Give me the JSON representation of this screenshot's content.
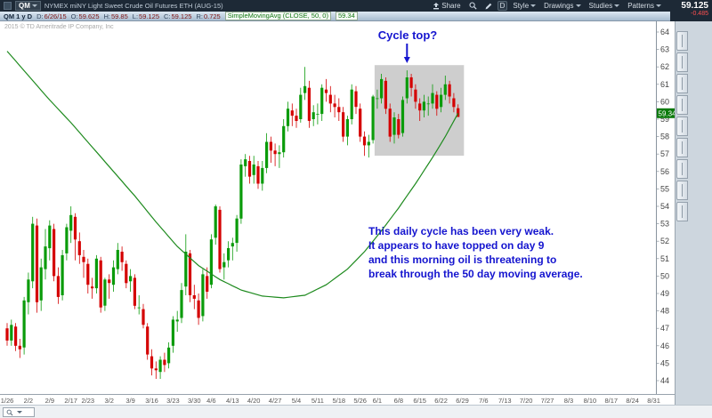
{
  "titlebar": {
    "symbol": "QM",
    "title": "NYMEX miNY Light Sweet Crude Oil Futures ETH (AUG-15)",
    "share_label": "Share",
    "timeframe_label": "D",
    "style_label": "Style",
    "drawings_label": "Drawings",
    "studies_label": "Studies",
    "patterns_label": "Patterns",
    "last_price": "59.125",
    "change": "-0.485"
  },
  "statusbar": {
    "symbol_period": "QM 1 y D",
    "fields": [
      {
        "label": "D:",
        "value": "6/26/15"
      },
      {
        "label": "O:",
        "value": "59.625"
      },
      {
        "label": "H:",
        "value": "59.85"
      },
      {
        "label": "L:",
        "value": "59.125"
      },
      {
        "label": "C:",
        "value": "59.125"
      },
      {
        "label": "R:",
        "value": "0.725"
      }
    ],
    "study_legend": "SimpleMovingAvg (CLOSE, 50, 0)",
    "study_value": "59.34"
  },
  "chart": {
    "copyright": "2015 © TD Ameritrade IP Company, Inc",
    "colors": {
      "up": "#0a9b0a",
      "down": "#d40000",
      "ma": "#1e8a1e",
      "annotation": "#1515cf",
      "region": "#c9c9c9",
      "badge_bg": "#0c7a0c",
      "axis_text": "#444444"
    },
    "annotations": {
      "cycle_top": {
        "text": "Cycle top?",
        "arrow_date": "6/10",
        "arrow_index": 94
      },
      "note_lines": [
        "This daily cycle has been very weak.",
        "It appears to have topped on day 9",
        "and this morning oil is threatening to",
        "break through the 50 day moving average."
      ],
      "region": {
        "start_date": "6/1",
        "start_index": 87,
        "end_index": 108,
        "top_price": 62.1,
        "bottom_price": 56.9
      }
    },
    "y_axis": {
      "labels": [
        64,
        63,
        62,
        61,
        60,
        59,
        58,
        57,
        56,
        55,
        54,
        53,
        52,
        51,
        50,
        49,
        48,
        47,
        46,
        45,
        44
      ],
      "ma_badge": "59.34"
    }
  },
  "chart_data": {
    "type": "candlestick",
    "symbol": "QM",
    "ylim": [
      43.5,
      64.6
    ],
    "dates": [
      "1/26",
      "1/27",
      "1/28",
      "1/29",
      "1/30",
      "2/2",
      "2/3",
      "2/4",
      "2/5",
      "2/6",
      "2/9",
      "2/10",
      "2/11",
      "2/12",
      "2/13",
      "2/17",
      "2/18",
      "2/19",
      "2/20",
      "2/23",
      "2/24",
      "2/25",
      "2/26",
      "2/27",
      "3/2",
      "3/3",
      "3/4",
      "3/5",
      "3/6",
      "3/9",
      "3/10",
      "3/11",
      "3/12",
      "3/13",
      "3/16",
      "3/17",
      "3/18",
      "3/19",
      "3/20",
      "3/23",
      "3/24",
      "3/25",
      "3/26",
      "3/27",
      "3/30",
      "3/31",
      "4/1",
      "4/2",
      "4/6",
      "4/7",
      "4/8",
      "4/9",
      "4/10",
      "4/13",
      "4/14",
      "4/15",
      "4/16",
      "4/17",
      "4/20",
      "4/21",
      "4/22",
      "4/23",
      "4/24",
      "4/27",
      "4/28",
      "4/29",
      "4/30",
      "5/1",
      "5/4",
      "5/5",
      "5/6",
      "5/7",
      "5/8",
      "5/11",
      "5/12",
      "5/13",
      "5/14",
      "5/15",
      "5/18",
      "5/19",
      "5/20",
      "5/21",
      "5/22",
      "5/26",
      "5/27",
      "5/28",
      "5/29",
      "6/1",
      "6/2",
      "6/3",
      "6/4",
      "6/5",
      "6/8",
      "6/9",
      "6/10",
      "6/11",
      "6/12",
      "6/15",
      "6/16",
      "6/17",
      "6/18",
      "6/19",
      "6/22",
      "6/23",
      "6/24",
      "6/25",
      "6/26"
    ],
    "candles": [
      [
        47.0,
        47.3,
        46.0,
        46.3
      ],
      [
        46.3,
        47.5,
        46.0,
        47.2
      ],
      [
        47.1,
        47.3,
        45.7,
        46.0
      ],
      [
        46.0,
        46.4,
        45.3,
        45.8
      ],
      [
        45.9,
        48.8,
        45.5,
        48.6
      ],
      [
        48.5,
        50.2,
        47.8,
        49.8
      ],
      [
        49.7,
        53.4,
        49.3,
        53.0
      ],
      [
        52.9,
        53.3,
        47.9,
        48.5
      ],
      [
        48.6,
        51.0,
        48.0,
        50.5
      ],
      [
        50.4,
        52.7,
        49.8,
        51.7
      ],
      [
        51.6,
        53.2,
        50.9,
        52.9
      ],
      [
        52.7,
        53.0,
        49.7,
        50.0
      ],
      [
        50.0,
        50.5,
        48.4,
        48.8
      ],
      [
        48.9,
        51.5,
        48.6,
        51.2
      ],
      [
        51.3,
        53.0,
        50.9,
        52.8
      ],
      [
        52.6,
        54.0,
        51.9,
        53.5
      ],
      [
        53.4,
        53.6,
        50.9,
        52.1
      ],
      [
        52.0,
        52.5,
        50.7,
        51.2
      ],
      [
        51.1,
        51.5,
        49.9,
        50.8
      ],
      [
        50.7,
        51.0,
        49.0,
        49.5
      ],
      [
        49.4,
        49.9,
        48.7,
        49.3
      ],
      [
        49.3,
        51.2,
        49.0,
        51.0
      ],
      [
        50.9,
        51.1,
        47.9,
        48.2
      ],
      [
        48.3,
        49.9,
        48.0,
        49.8
      ],
      [
        49.8,
        50.1,
        48.7,
        49.6
      ],
      [
        49.5,
        50.9,
        49.1,
        50.5
      ],
      [
        50.4,
        51.9,
        50.1,
        51.5
      ],
      [
        51.4,
        51.7,
        50.3,
        50.8
      ],
      [
        50.7,
        50.9,
        49.3,
        49.6
      ],
      [
        49.7,
        50.4,
        49.1,
        50.0
      ],
      [
        49.9,
        50.1,
        48.1,
        48.3
      ],
      [
        48.2,
        48.9,
        47.8,
        48.2
      ],
      [
        48.1,
        48.4,
        47.0,
        47.2
      ],
      [
        47.1,
        47.3,
        45.2,
        45.5
      ],
      [
        45.4,
        45.8,
        44.3,
        44.7
      ],
      [
        44.7,
        45.1,
        44.1,
        44.6
      ],
      [
        44.5,
        45.4,
        44.1,
        45.2
      ],
      [
        45.2,
        45.6,
        44.5,
        44.9
      ],
      [
        45.0,
        46.2,
        44.7,
        45.9
      ],
      [
        46.0,
        47.7,
        45.6,
        47.5
      ],
      [
        47.4,
        48.0,
        46.8,
        47.5
      ],
      [
        47.6,
        49.6,
        47.3,
        49.2
      ],
      [
        49.4,
        52.4,
        48.9,
        51.4
      ],
      [
        51.3,
        51.5,
        48.5,
        48.9
      ],
      [
        48.9,
        49.5,
        48.1,
        48.7
      ],
      [
        48.6,
        49.0,
        47.2,
        47.6
      ],
      [
        47.7,
        50.4,
        47.4,
        50.1
      ],
      [
        50.0,
        50.5,
        48.7,
        49.1
      ],
      [
        49.5,
        52.4,
        49.3,
        52.1
      ],
      [
        52.2,
        54.1,
        51.8,
        54.0
      ],
      [
        53.8,
        54.0,
        50.2,
        50.4
      ],
      [
        50.5,
        51.3,
        49.8,
        50.8
      ],
      [
        50.9,
        52.0,
        50.5,
        51.6
      ],
      [
        51.7,
        52.2,
        50.9,
        51.9
      ],
      [
        51.9,
        53.5,
        51.4,
        53.3
      ],
      [
        53.3,
        56.7,
        53.0,
        56.4
      ],
      [
        56.3,
        57.0,
        55.7,
        56.7
      ],
      [
        56.6,
        56.9,
        55.3,
        55.7
      ],
      [
        55.8,
        56.9,
        55.3,
        56.4
      ],
      [
        56.3,
        56.6,
        55.0,
        55.3
      ],
      [
        55.3,
        56.6,
        54.9,
        56.2
      ],
      [
        56.2,
        58.2,
        55.9,
        57.7
      ],
      [
        57.7,
        58.0,
        56.5,
        57.2
      ],
      [
        57.2,
        57.6,
        56.3,
        57.0
      ],
      [
        57.0,
        57.5,
        56.2,
        57.1
      ],
      [
        57.1,
        59.0,
        56.8,
        58.6
      ],
      [
        58.6,
        60.0,
        58.3,
        59.6
      ],
      [
        59.5,
        59.9,
        58.6,
        59.2
      ],
      [
        59.2,
        59.6,
        58.5,
        58.9
      ],
      [
        59.0,
        60.8,
        58.8,
        60.4
      ],
      [
        60.5,
        62.0,
        60.1,
        60.9
      ],
      [
        60.8,
        61.2,
        58.5,
        58.9
      ],
      [
        59.0,
        59.8,
        58.6,
        59.4
      ],
      [
        59.3,
        59.9,
        58.7,
        59.3
      ],
      [
        59.3,
        61.0,
        58.9,
        60.8
      ],
      [
        60.7,
        61.3,
        60.0,
        60.5
      ],
      [
        60.4,
        60.9,
        59.4,
        59.9
      ],
      [
        59.9,
        60.4,
        59.1,
        59.7
      ],
      [
        59.7,
        60.2,
        58.9,
        59.4
      ],
      [
        59.4,
        59.7,
        57.7,
        58.0
      ],
      [
        58.0,
        59.2,
        57.5,
        59.0
      ],
      [
        59.0,
        61.0,
        58.7,
        60.7
      ],
      [
        60.6,
        60.9,
        59.3,
        59.7
      ],
      [
        59.6,
        59.9,
        57.7,
        58.0
      ],
      [
        58.0,
        58.3,
        56.9,
        57.5
      ],
      [
        57.5,
        58.1,
        56.8,
        57.7
      ],
      [
        57.8,
        60.4,
        57.6,
        60.3
      ],
      [
        60.2,
        60.7,
        59.6,
        60.2
      ],
      [
        60.2,
        61.6,
        59.9,
        61.3
      ],
      [
        61.2,
        61.4,
        59.3,
        59.6
      ],
      [
        59.6,
        59.9,
        57.7,
        58.0
      ],
      [
        58.1,
        59.4,
        57.6,
        59.1
      ],
      [
        59.0,
        59.3,
        57.9,
        58.1
      ],
      [
        58.2,
        60.3,
        58.0,
        60.1
      ],
      [
        60.2,
        61.8,
        59.9,
        61.4
      ],
      [
        61.4,
        61.6,
        60.3,
        60.8
      ],
      [
        60.7,
        61.0,
        59.6,
        60.0
      ],
      [
        59.9,
        60.2,
        58.9,
        59.5
      ],
      [
        59.5,
        60.4,
        59.1,
        60.0
      ],
      [
        59.9,
        60.3,
        59.2,
        59.9
      ],
      [
        59.9,
        61.0,
        59.6,
        60.5
      ],
      [
        60.4,
        60.6,
        59.2,
        59.6
      ],
      [
        59.7,
        60.8,
        59.4,
        60.4
      ],
      [
        60.4,
        61.5,
        60.1,
        61.0
      ],
      [
        61.0,
        61.2,
        59.9,
        60.3
      ],
      [
        60.2,
        60.5,
        59.4,
        59.7
      ],
      [
        59.63,
        59.85,
        59.13,
        59.13
      ]
    ],
    "ma_series": {
      "name": "SimpleMovingAvg (CLOSE, 50, 0)",
      "last_value": 59.34,
      "samples": [
        [
          0,
          62.9
        ],
        [
          5,
          61.5
        ],
        [
          10,
          60.1
        ],
        [
          15,
          58.8
        ],
        [
          20,
          57.4
        ],
        [
          25,
          56.0
        ],
        [
          30,
          54.6
        ],
        [
          35,
          53.1
        ],
        [
          40,
          51.7
        ],
        [
          45,
          50.6
        ],
        [
          50,
          49.8
        ],
        [
          55,
          49.2
        ],
        [
          60,
          48.85
        ],
        [
          65,
          48.75
        ],
        [
          70,
          48.9
        ],
        [
          75,
          49.5
        ],
        [
          80,
          50.4
        ],
        [
          84,
          51.4
        ],
        [
          88,
          52.6
        ],
        [
          92,
          53.9
        ],
        [
          96,
          55.3
        ],
        [
          100,
          56.8
        ],
        [
          103,
          58.0
        ],
        [
          106,
          59.34
        ]
      ]
    },
    "x_ticks": [
      [
        "1/26",
        0
      ],
      [
        "2/2",
        5
      ],
      [
        "2/9",
        10
      ],
      [
        "2/17",
        15
      ],
      [
        "2/23",
        19
      ],
      [
        "3/2",
        24
      ],
      [
        "3/9",
        29
      ],
      [
        "3/16",
        34
      ],
      [
        "3/23",
        39
      ],
      [
        "3/30",
        44
      ],
      [
        "4/6",
        48
      ],
      [
        "4/13",
        53
      ],
      [
        "4/20",
        58
      ],
      [
        "4/27",
        63
      ],
      [
        "5/4",
        68
      ],
      [
        "5/11",
        73
      ],
      [
        "5/18",
        78
      ],
      [
        "5/26",
        83
      ],
      [
        "6/1",
        87
      ],
      [
        "6/8",
        92
      ],
      [
        "6/15",
        97
      ],
      [
        "6/22",
        102
      ],
      [
        "6/29",
        107
      ],
      [
        "7/6",
        112
      ],
      [
        "7/13",
        117
      ],
      [
        "7/20",
        122
      ],
      [
        "7/27",
        127
      ],
      [
        "8/3",
        132
      ],
      [
        "8/10",
        137
      ],
      [
        "8/17",
        142
      ],
      [
        "8/24",
        147
      ],
      [
        "8/31",
        152
      ]
    ]
  }
}
